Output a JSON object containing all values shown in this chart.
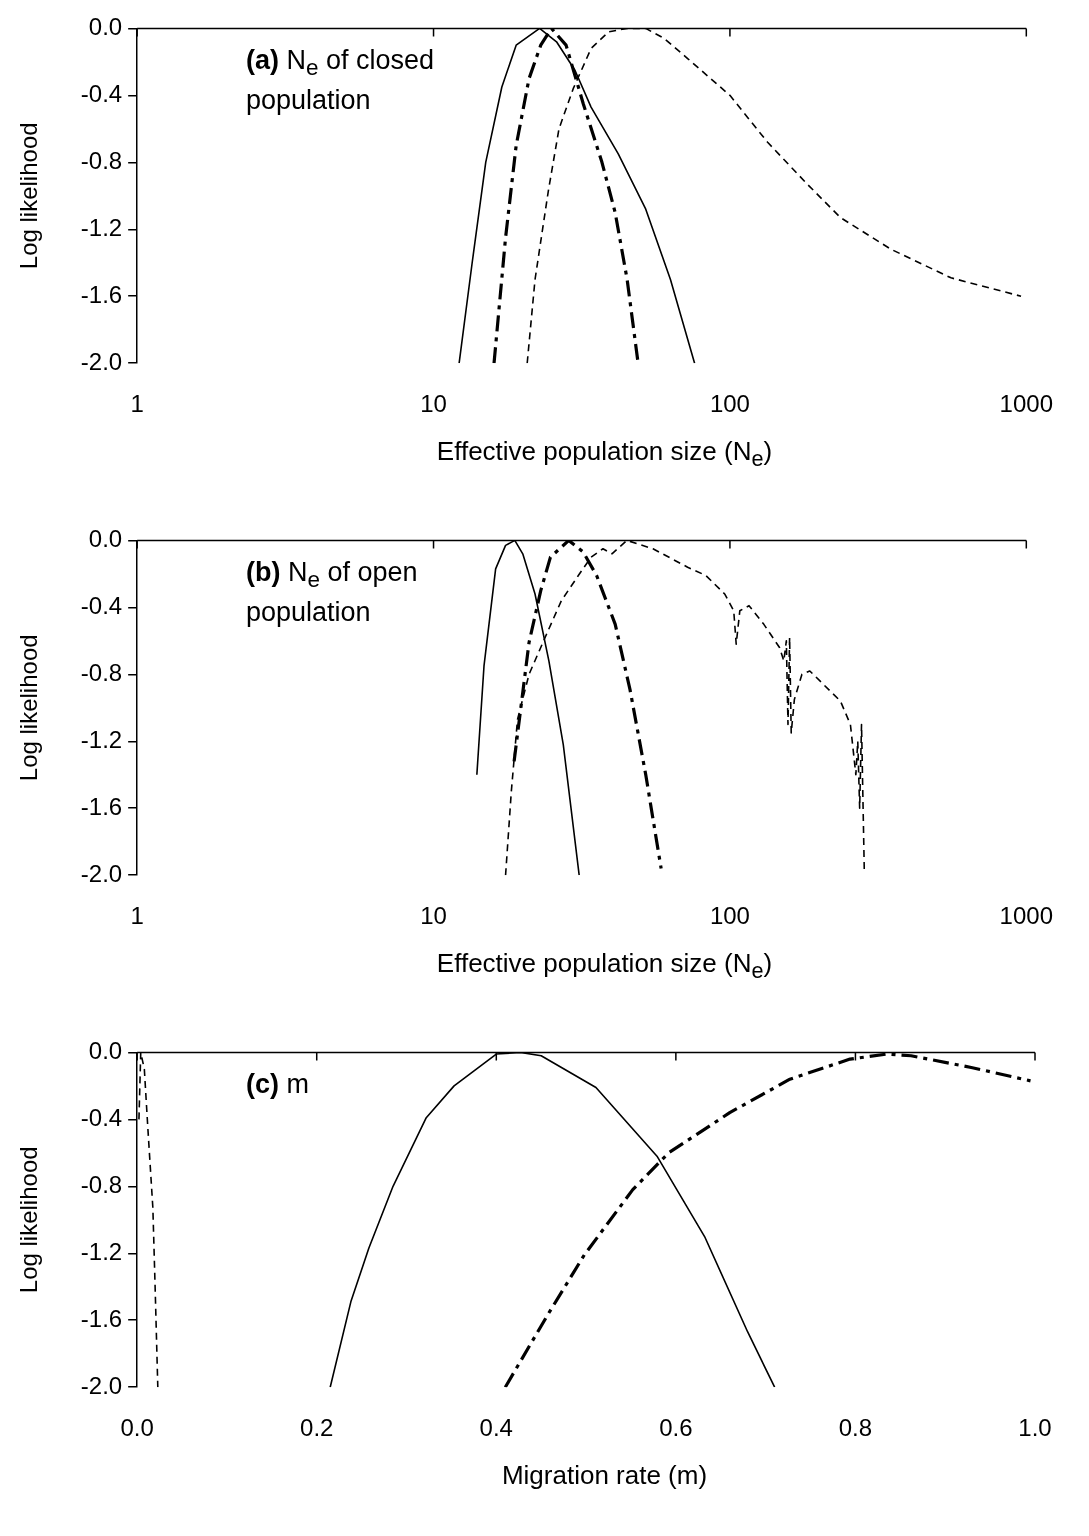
{
  "chart_data": [
    {
      "type": "line",
      "xlabel": "Effective population size (N$_{e}$)",
      "ylabel": "Log likelihood",
      "annotations": [
        {
          "text": "(a) N$_{e}$ of closed population"
        }
      ],
      "log": "x",
      "xlim": [
        1,
        1000
      ],
      "xticks": [
        1,
        10,
        100,
        1000
      ],
      "ylim": [
        -2,
        0
      ],
      "yticks": [
        {
          "value": -2,
          "label": "-2.0"
        },
        {
          "value": -1.6,
          "label": "-1.6"
        },
        {
          "value": -1.2,
          "label": "-1.2"
        },
        {
          "value": -0.8,
          "label": "-0.8"
        },
        {
          "value": -0.4,
          "label": "-0.4"
        },
        {
          "value": 0,
          "label": "0.0"
        }
      ],
      "grid": false,
      "legend": false,
      "series": [
        {
          "color": "#000000",
          "line_style": "solid",
          "x": [
            12.2,
            13.5,
            15,
            17,
            19,
            22.8,
            26,
            30,
            34,
            42,
            52,
            63,
            76
          ],
          "values": [
            -2,
            -1.4,
            -0.8,
            -0.35,
            -0.1,
            0,
            -0.08,
            -0.25,
            -0.47,
            -0.75,
            -1.08,
            -1.5,
            -2
          ]
        },
        {
          "color": "#000000",
          "line_style": "dashdot",
          "x": [
            16,
            17.5,
            19,
            21,
            23,
            25,
            28,
            32,
            37,
            41,
            45,
            49
          ],
          "values": [
            -2,
            -1.25,
            -0.7,
            -0.3,
            -0.1,
            0,
            -0.1,
            -0.45,
            -0.8,
            -1.1,
            -1.5,
            -2
          ]
        },
        {
          "color": "#000000",
          "line_style": "dashed",
          "x": [
            20.7,
            22,
            24.4,
            26.5,
            29.6,
            34,
            39,
            45,
            52,
            60,
            72,
            100,
            134,
            180,
            236,
            350,
            557,
            960
          ],
          "values": [
            -2,
            -1.5,
            -0.97,
            -0.6,
            -0.36,
            -0.12,
            -0.02,
            0,
            0,
            -0.06,
            -0.18,
            -0.4,
            -0.68,
            -0.92,
            -1.13,
            -1.32,
            -1.49,
            -1.6
          ]
        }
      ]
    },
    {
      "type": "line",
      "xlabel": "Effective population size (N$_{e}$)",
      "ylabel": "Log likelihood",
      "annotations": [
        {
          "text": "(b) N$_{e}$ of open population"
        }
      ],
      "log": "x",
      "xlim": [
        1,
        1000
      ],
      "xticks": [
        1,
        10,
        100,
        1000
      ],
      "ylim": [
        -2,
        0
      ],
      "yticks": [
        {
          "value": -2,
          "label": "-2.0"
        },
        {
          "value": -1.6,
          "label": "-1.6"
        },
        {
          "value": -1.2,
          "label": "-1.2"
        },
        {
          "value": -0.8,
          "label": "-0.8"
        },
        {
          "value": -0.4,
          "label": "-0.4"
        },
        {
          "value": 0,
          "label": "0.0"
        }
      ],
      "grid": false,
      "legend": false,
      "series": [
        {
          "color": "#000000",
          "line_style": "solid",
          "x": [
            14,
            14.8,
            16.2,
            17.5,
            18.8,
            20,
            22,
            24.5,
            27.4,
            31
          ],
          "values": [
            -1.4,
            -0.75,
            -0.17,
            -0.03,
            0,
            -0.08,
            -0.32,
            -0.72,
            -1.22,
            -2
          ]
        },
        {
          "color": "#000000",
          "line_style": "dashdot",
          "x": [
            18.7,
            21,
            23,
            24.8,
            28.6,
            32,
            35.5,
            41,
            46,
            52,
            58.6
          ],
          "values": [
            -1.32,
            -0.61,
            -0.3,
            -0.1,
            0,
            -0.07,
            -0.21,
            -0.5,
            -0.89,
            -1.4,
            -1.96
          ]
        },
        {
          "color": "#000000",
          "line_style": "dashed",
          "x": [
            17.5,
            18.3,
            19.2,
            21,
            24.2,
            27,
            30.8,
            34,
            37.3,
            40,
            44.9,
            55,
            72,
            83,
            96,
            103,
            105,
            108,
            116,
            130,
            147,
            152,
            155,
            157,
            159,
            161,
            165,
            175,
            186,
            236,
            255,
            266,
            270,
            274,
            278,
            284
          ],
          "values": [
            -2,
            -1.5,
            -1.07,
            -0.8,
            -0.55,
            -0.36,
            -0.21,
            -0.1,
            -0.05,
            -0.08,
            0,
            -0.05,
            -0.16,
            -0.21,
            -0.32,
            -0.42,
            -0.62,
            -0.42,
            -0.39,
            -0.5,
            -0.64,
            -0.72,
            -0.6,
            -1.1,
            -0.58,
            -1.15,
            -0.95,
            -0.8,
            -0.78,
            -0.96,
            -1.1,
            -1.4,
            -1.2,
            -1.6,
            -1.1,
            -1.97
          ]
        }
      ]
    },
    {
      "type": "line",
      "xlabel": "Migration rate (m)",
      "ylabel": "Log likelihood",
      "annotations": [
        {
          "text": "(c) m"
        }
      ],
      "xlim": [
        0,
        1
      ],
      "xticks": [
        {
          "value": 0,
          "label": "0.0"
        },
        {
          "value": 0.2,
          "label": "0.2"
        },
        {
          "value": 0.4,
          "label": "0.4"
        },
        {
          "value": 0.6,
          "label": "0.6"
        },
        {
          "value": 0.8,
          "label": "0.8"
        },
        {
          "value": 1,
          "label": "1.0"
        }
      ],
      "ylim": [
        -2,
        0
      ],
      "yticks": [
        {
          "value": -2,
          "label": "-2.0"
        },
        {
          "value": -1.6,
          "label": "-1.6"
        },
        {
          "value": -1.2,
          "label": "-1.2"
        },
        {
          "value": -0.8,
          "label": "-0.8"
        },
        {
          "value": -0.4,
          "label": "-0.4"
        },
        {
          "value": 0,
          "label": "0.0"
        }
      ],
      "grid": false,
      "legend": false,
      "series": [
        {
          "color": "#000000",
          "line_style": "solid",
          "x": [
            0.215,
            0.238,
            0.258,
            0.285,
            0.322,
            0.353,
            0.4,
            0.427,
            0.45,
            0.511,
            0.579,
            0.632,
            0.68,
            0.71
          ],
          "values": [
            -2,
            -1.49,
            -1.17,
            -0.8,
            -0.39,
            -0.2,
            -0.01,
            0,
            -0.02,
            -0.21,
            -0.62,
            -1.1,
            -1.67,
            -2
          ]
        },
        {
          "color": "#000000",
          "line_style": "dashdot",
          "x": [
            0.41,
            0.457,
            0.498,
            0.552,
            0.592,
            0.66,
            0.727,
            0.794,
            0.835,
            0.862,
            0.929,
            0.995
          ],
          "values": [
            -2,
            -1.57,
            -1.21,
            -0.82,
            -0.6,
            -0.36,
            -0.16,
            -0.04,
            -0.01,
            -0.02,
            -0.09,
            -0.17
          ]
        },
        {
          "color": "#000000",
          "line_style": "dashed",
          "x": [
            0.002,
            0.004,
            0.008,
            0.012,
            0.0175,
            0.02,
            0.023
          ],
          "values": [
            -0.4,
            0,
            -0.1,
            -0.46,
            -0.93,
            -1.4,
            -2
          ]
        }
      ]
    }
  ]
}
